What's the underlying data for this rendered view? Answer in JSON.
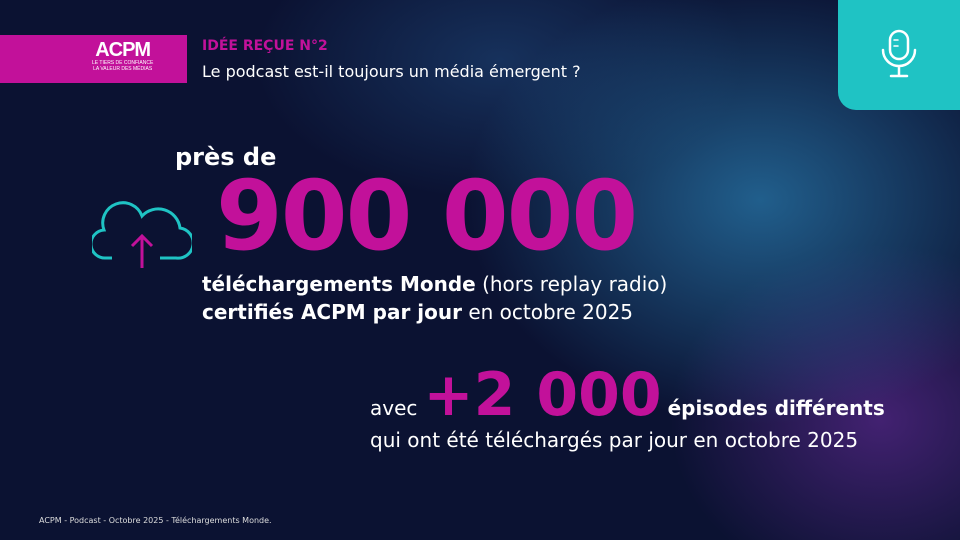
{
  "brand": {
    "logo_text": "ACPM",
    "logo_tagline1": "LE TIERS DE CONFIANCE",
    "logo_tagline2": "LA VALEUR DES MÉDIAS",
    "accent": "#c2119a",
    "mic_bg": "#1fc3c4"
  },
  "header": {
    "kicker": "IDÉE REÇUE N°2",
    "question": "Le podcast est-il toujours un média émergent ?"
  },
  "stat1": {
    "prefix": "près de",
    "value": "900 000",
    "line1_bold": "téléchargements Monde",
    "line1_rest": " (hors replay radio)",
    "line2_bold": "certifiés ACPM par jour",
    "line2_rest": " en octobre 2025",
    "icon": "cloud-download-icon"
  },
  "stat2": {
    "prefix": "avec",
    "value": "+2 000",
    "suffix": "épisodes différents",
    "line2": "qui ont été téléchargés par jour en octobre 2025"
  },
  "footer": {
    "source": "ACPM - Podcast - Octobre 2025 - Téléchargements Monde."
  }
}
